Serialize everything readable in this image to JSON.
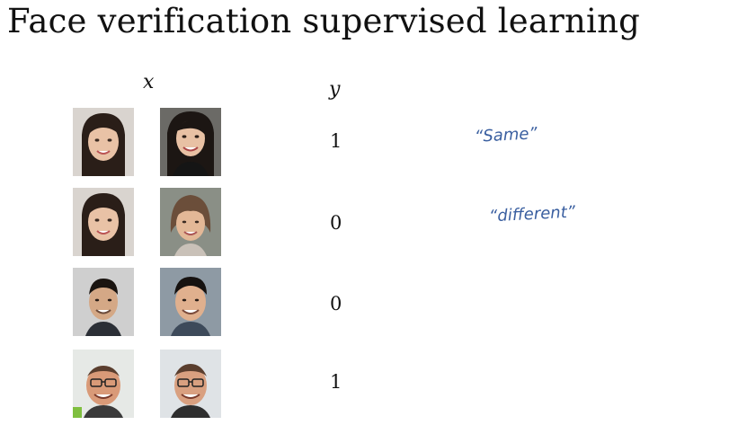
{
  "slide": {
    "title": "Face verification supervised learning",
    "header_x": "x",
    "header_y": "y"
  },
  "rows": [
    {
      "y": "1",
      "note": "“Same”",
      "faces": [
        "woman-long-dark-hair",
        "woman-dark-hair-black-jacket"
      ]
    },
    {
      "y": "0",
      "note": "“different”",
      "faces": [
        "woman-long-dark-hair",
        "older-woman-short-hair"
      ]
    },
    {
      "y": "0",
      "note": "",
      "faces": [
        "man-dark-hair-beard",
        "man-dark-hair-smiling"
      ]
    },
    {
      "y": "1",
      "note": "",
      "faces": [
        "man-glasses-bald",
        "man-glasses-bald"
      ]
    }
  ],
  "colors": {
    "ink": "#3a5fa0",
    "text": "#111111"
  }
}
